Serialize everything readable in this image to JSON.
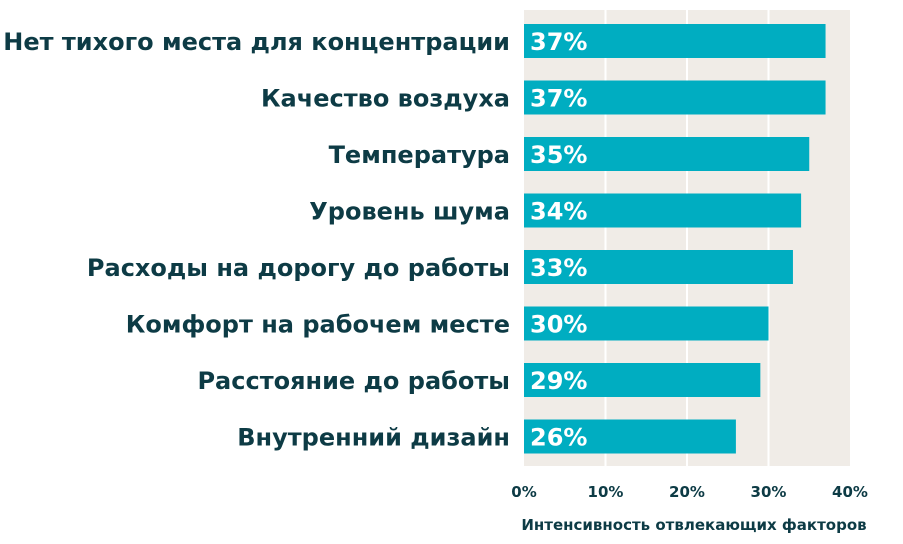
{
  "chart_data": {
    "type": "bar",
    "orientation": "horizontal",
    "categories": [
      "Нет тихого места для концентрации",
      "Качество воздуха",
      "Температура",
      "Уровень шума",
      "Расходы на дорогу до работы",
      "Комфорт на рабочем месте",
      "Расстояние до работы",
      "Внутренний дизайн"
    ],
    "values": [
      37,
      37,
      35,
      34,
      33,
      30,
      29,
      26
    ],
    "value_labels": [
      "37%",
      "37%",
      "35%",
      "34%",
      "33%",
      "30%",
      "29%",
      "26%"
    ],
    "xlabel": "Интенсивность отвлекающих факторов",
    "ylabel": "",
    "xlim": [
      0,
      40
    ],
    "xticks": [
      0,
      10,
      20,
      30,
      40
    ],
    "xtick_labels": [
      "0%",
      "10%",
      "20%",
      "30%",
      "40%"
    ],
    "grid": "vertical",
    "colors": {
      "bar": "#00adc1",
      "plot_background": "#f0ece7",
      "grid": "#ffffff",
      "text": "#0d3b45",
      "value_text": "#ffffff"
    }
  }
}
